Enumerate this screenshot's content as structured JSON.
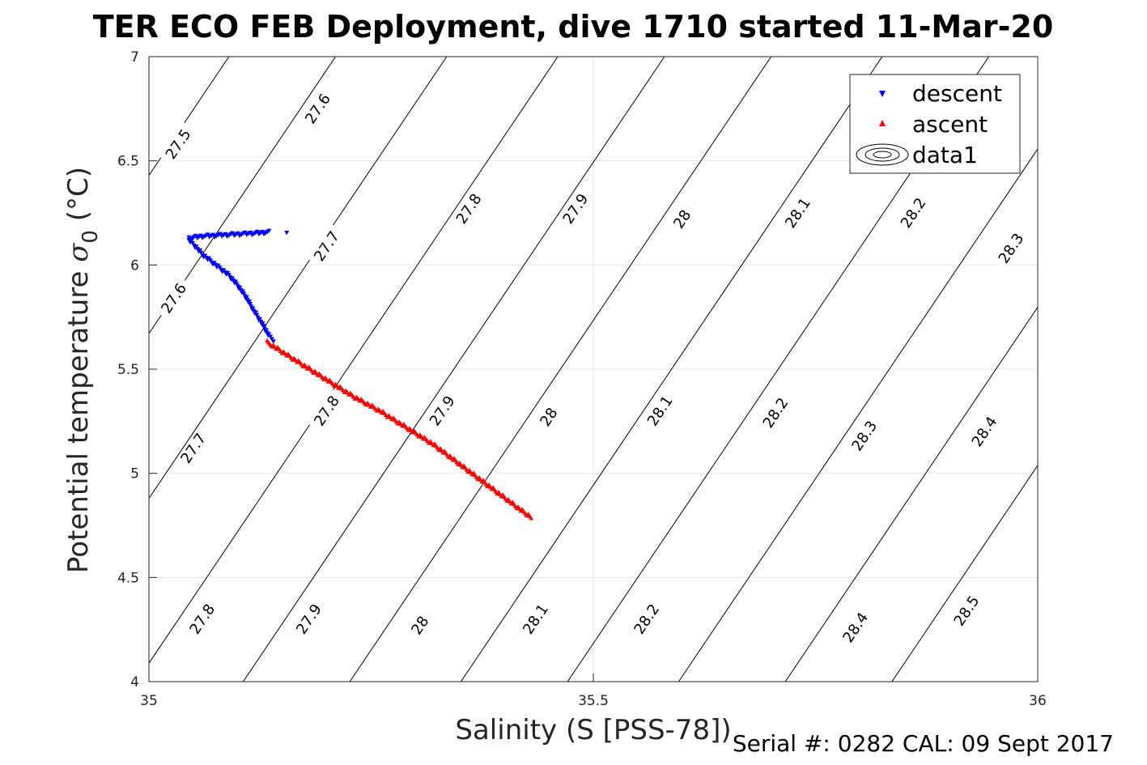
{
  "chart_data": {
    "type": "scatter",
    "title": "TER ECO FEB Deployment, dive 1710 started 11-Mar-20",
    "xlabel": "Salinity (S [PSS-78])",
    "ylabel_main": "Potential temperature ",
    "ylabel_symbol": "σ",
    "ylabel_sub": "0",
    "ylabel_unit": " (°C)",
    "xlim": [
      35,
      36
    ],
    "ylim": [
      4,
      7
    ],
    "x_ticks": [
      35,
      35.5,
      36
    ],
    "x_tick_labels": [
      "35",
      "35.5",
      "36"
    ],
    "y_ticks": [
      4,
      4.5,
      5,
      5.5,
      6,
      6.5,
      7
    ],
    "y_tick_labels": [
      "4",
      "4.5",
      "5",
      "5.5",
      "6",
      "6.5",
      "7"
    ],
    "grid": true,
    "legend_position": "top-right",
    "legend": [
      "descent",
      "ascent",
      "data1"
    ],
    "series": [
      {
        "name": "descent",
        "marker": "triangle-down",
        "color": "#0000ff",
        "points": [
          [
            35.155,
            6.155
          ],
          [
            35.135,
            6.157
          ],
          [
            35.12,
            6.152
          ],
          [
            35.1,
            6.147
          ],
          [
            35.08,
            6.142
          ],
          [
            35.06,
            6.137
          ],
          [
            35.045,
            6.128
          ],
          [
            35.045,
            6.12
          ],
          [
            35.052,
            6.09
          ],
          [
            35.06,
            6.05
          ],
          [
            35.075,
            6.0
          ],
          [
            35.09,
            5.95
          ],
          [
            35.1,
            5.9
          ],
          [
            35.11,
            5.84
          ],
          [
            35.118,
            5.78
          ],
          [
            35.127,
            5.72
          ],
          [
            35.135,
            5.66
          ],
          [
            35.14,
            5.64
          ]
        ]
      },
      {
        "name": "ascent",
        "marker": "triangle-up",
        "color": "#ff0000",
        "points": [
          [
            35.133,
            5.63
          ],
          [
            35.17,
            5.53
          ],
          [
            35.2,
            5.45
          ],
          [
            35.23,
            5.37
          ],
          [
            35.26,
            5.3
          ],
          [
            35.29,
            5.22
          ],
          [
            35.32,
            5.14
          ],
          [
            35.345,
            5.06
          ],
          [
            35.37,
            4.98
          ],
          [
            35.395,
            4.9
          ],
          [
            35.42,
            4.82
          ],
          [
            35.43,
            4.79
          ]
        ]
      }
    ],
    "density_contours": [
      {
        "level": "27.5",
        "s_at_t7": 35.09,
        "label_points": [
          [
            35.033,
            6.58
          ]
        ]
      },
      {
        "level": "27.6",
        "s_at_t7": 35.21,
        "label_points": [
          [
            35.19,
            6.75
          ],
          [
            35.028,
            5.84
          ]
        ]
      },
      {
        "level": "27.7",
        "s_at_t7": 35.335,
        "label_points": [
          [
            35.2,
            6.09
          ],
          [
            35.05,
            5.12
          ]
        ]
      },
      {
        "level": "27.8",
        "s_at_t7": 35.46,
        "label_points": [
          [
            35.36,
            6.27
          ],
          [
            35.2,
            5.3
          ],
          [
            35.06,
            4.3
          ]
        ]
      },
      {
        "level": "27.9",
        "s_at_t7": 35.58,
        "label_points": [
          [
            35.48,
            6.27
          ],
          [
            35.33,
            5.3
          ],
          [
            35.18,
            4.3
          ]
        ]
      },
      {
        "level": "28",
        "s_at_t7": 35.7,
        "label_points": [
          [
            35.6,
            6.22
          ],
          [
            35.45,
            5.27
          ],
          [
            35.305,
            4.27
          ]
        ]
      },
      {
        "level": "28.1",
        "s_at_t7": 35.825,
        "label_points": [
          [
            35.73,
            6.25
          ],
          [
            35.575,
            5.3
          ],
          [
            35.435,
            4.3
          ]
        ]
      },
      {
        "level": "28.2",
        "s_at_t7": 35.945,
        "label_points": [
          [
            35.86,
            6.25
          ],
          [
            35.705,
            5.29
          ],
          [
            35.56,
            4.3
          ]
        ]
      },
      {
        "level": "28.3",
        "s_at_t7": 36.07,
        "label_points": [
          [
            35.97,
            6.08
          ],
          [
            35.805,
            5.18
          ]
        ]
      },
      {
        "level": "28.4",
        "s_at_t7": 36.19,
        "label_points": [
          [
            35.94,
            5.2
          ],
          [
            35.795,
            4.26
          ]
        ]
      },
      {
        "level": "28.5",
        "s_at_t7": 36.31,
        "label_points": [
          [
            35.92,
            4.34
          ]
        ]
      }
    ]
  },
  "footer": {
    "serial": "Serial #: 0282  CAL: 09 Sept 2017"
  }
}
